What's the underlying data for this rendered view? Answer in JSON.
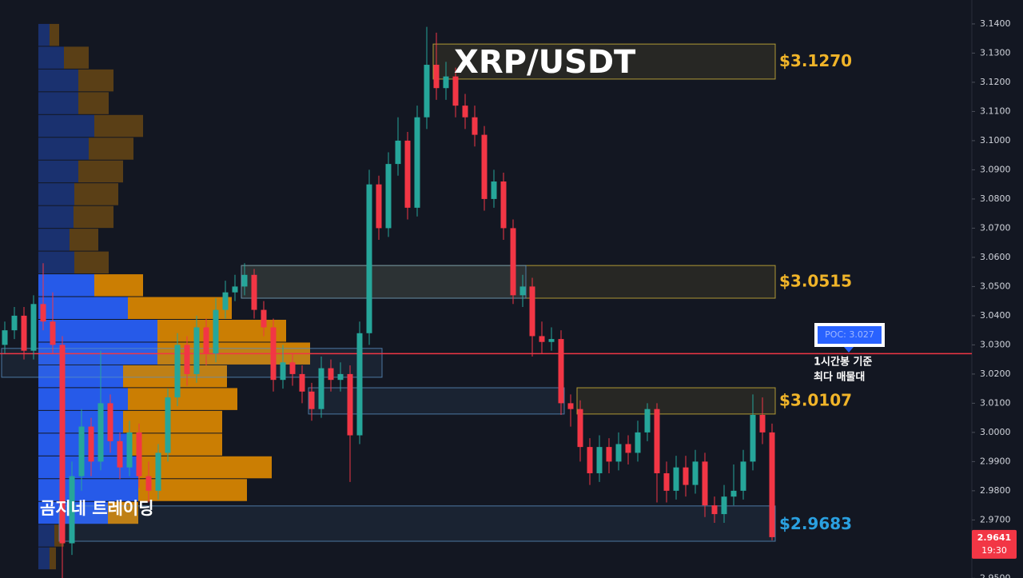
{
  "chart_data": {
    "type": "candlestick",
    "title": "XRP/USDT",
    "watermark": "곰지네 트레이딩",
    "ylim": [
      2.9501,
      3.1482
    ],
    "yticks": [
      {
        "value": 3.14,
        "label": "3.1400"
      },
      {
        "value": 3.13,
        "label": "3.1300"
      },
      {
        "value": 3.12,
        "label": "3.1200"
      },
      {
        "value": 3.11,
        "label": "3.1100"
      },
      {
        "value": 3.1,
        "label": "3.1000"
      },
      {
        "value": 3.09,
        "label": "3.0900"
      },
      {
        "value": 3.08,
        "label": "3.0800"
      },
      {
        "value": 3.07,
        "label": "3.0700"
      },
      {
        "value": 3.06,
        "label": "3.0600"
      },
      {
        "value": 3.05,
        "label": "3.0500"
      },
      {
        "value": 3.04,
        "label": "3.0400"
      },
      {
        "value": 3.03,
        "label": "3.0300"
      },
      {
        "value": 3.02,
        "label": "3.0200"
      },
      {
        "value": 3.01,
        "label": "3.0100"
      },
      {
        "value": 3.0,
        "label": "3.0000"
      },
      {
        "value": 2.99,
        "label": "2.9900"
      },
      {
        "value": 2.98,
        "label": "2.9800"
      },
      {
        "value": 2.97,
        "label": "2.9700"
      },
      {
        "value": 2.95,
        "label": "2.9500"
      }
    ],
    "up_color": "#26a69a",
    "down_color": "#f23645",
    "open": [
      3.03,
      3.035,
      3.04,
      3.028,
      3.044,
      3.038,
      3.03,
      2.962,
      2.985,
      3.002,
      2.99,
      3.01,
      2.997,
      2.988,
      3.0,
      2.985,
      2.98,
      2.993,
      3.012,
      3.03,
      3.02,
      3.036,
      3.027,
      3.042,
      3.048,
      3.05,
      3.054,
      3.042,
      3.036,
      3.018,
      3.024,
      3.02,
      3.014,
      3.008,
      3.022,
      3.018,
      3.02,
      2.999,
      3.034,
      3.085,
      3.07,
      3.092,
      3.1,
      3.077,
      3.108,
      3.126,
      3.118,
      3.122,
      3.112,
      3.108,
      3.102,
      3.08,
      3.086,
      3.07,
      3.047,
      3.05,
      3.033,
      3.031,
      3.032,
      3.01,
      3.008,
      2.995,
      2.986,
      2.995,
      2.99,
      2.996,
      2.993,
      3.0,
      3.008,
      2.986,
      2.98,
      2.988,
      2.982,
      2.99,
      2.975,
      2.972,
      2.978,
      2.98,
      2.99,
      3.006,
      3.0
    ],
    "high": [
      3.038,
      3.043,
      3.043,
      3.047,
      3.058,
      3.048,
      3.033,
      2.99,
      3.008,
      3.005,
      3.028,
      3.013,
      3.0,
      3.004,
      3.003,
      2.99,
      2.996,
      3.015,
      3.034,
      3.033,
      3.04,
      3.039,
      3.046,
      3.052,
      3.054,
      3.058,
      3.056,
      3.045,
      3.039,
      3.03,
      3.027,
      3.023,
      3.017,
      3.026,
      3.025,
      3.024,
      3.023,
      3.038,
      3.09,
      3.088,
      3.096,
      3.108,
      3.103,
      3.112,
      3.139,
      3.137,
      3.127,
      3.125,
      3.116,
      3.112,
      3.105,
      3.09,
      3.089,
      3.073,
      3.054,
      3.053,
      3.038,
      3.036,
      3.035,
      3.013,
      3.011,
      2.998,
      2.999,
      2.998,
      3.0,
      2.999,
      3.004,
      3.01,
      3.01,
      2.99,
      2.992,
      2.992,
      2.994,
      2.993,
      2.978,
      2.982,
      2.989,
      2.994,
      3.013,
      3.012,
      3.003
    ],
    "low": [
      3.027,
      3.032,
      3.025,
      3.025,
      3.035,
      3.027,
      2.95,
      2.958,
      2.98,
      2.985,
      2.987,
      2.993,
      2.984,
      2.985,
      2.981,
      2.976,
      2.977,
      2.99,
      3.009,
      3.016,
      3.017,
      3.023,
      3.024,
      3.039,
      3.045,
      3.047,
      3.039,
      3.033,
      3.014,
      3.015,
      3.016,
      3.01,
      3.004,
      3.005,
      3.014,
      3.014,
      2.983,
      2.996,
      3.03,
      3.066,
      3.067,
      3.088,
      3.073,
      3.074,
      3.104,
      3.114,
      3.114,
      3.108,
      3.104,
      3.098,
      3.076,
      3.077,
      3.066,
      3.044,
      3.043,
      3.026,
      3.027,
      3.028,
      3.006,
      3.002,
      2.99,
      2.982,
      2.983,
      2.986,
      2.987,
      2.989,
      2.99,
      2.997,
      2.976,
      2.976,
      2.977,
      2.978,
      2.979,
      2.971,
      2.969,
      2.969,
      2.975,
      2.977,
      2.987,
      2.996,
      2.963
    ],
    "close": [
      3.035,
      3.04,
      3.028,
      3.044,
      3.038,
      3.03,
      2.962,
      2.985,
      3.002,
      2.99,
      3.01,
      2.997,
      2.988,
      3.0,
      2.985,
      2.98,
      2.993,
      3.012,
      3.03,
      3.02,
      3.036,
      3.027,
      3.042,
      3.048,
      3.05,
      3.054,
      3.042,
      3.036,
      3.018,
      3.024,
      3.02,
      3.014,
      3.008,
      3.022,
      3.018,
      3.02,
      2.999,
      3.034,
      3.085,
      3.07,
      3.092,
      3.1,
      3.077,
      3.108,
      3.126,
      3.118,
      3.122,
      3.112,
      3.108,
      3.102,
      3.08,
      3.086,
      3.07,
      3.047,
      3.05,
      3.033,
      3.031,
      3.032,
      3.01,
      3.008,
      2.995,
      2.986,
      2.995,
      2.99,
      2.996,
      2.993,
      3.0,
      3.008,
      2.986,
      2.98,
      2.988,
      2.982,
      2.99,
      2.975,
      2.972,
      2.978,
      2.98,
      2.99,
      3.006,
      3.0,
      2.9641
    ],
    "countdown": "19:30",
    "poc": {
      "value": 3.027,
      "label": "POC: 3.027",
      "color": "#f23645",
      "note": [
        "1시간봉 기준",
        "최다 매물대"
      ]
    },
    "zones": [
      {
        "top": 3.1331,
        "bottom": 3.1211,
        "from": 45,
        "to": 80,
        "color": "#d4b83a",
        "level": 3.127,
        "label": "$3.1270",
        "label_color": "#f0b429"
      },
      {
        "top": 3.0572,
        "bottom": 3.046,
        "from": 25,
        "to": 80,
        "color": "#d4b83a",
        "level": 3.0515,
        "label": "$3.0515",
        "label_color": "#f0b429"
      },
      {
        "top": 3.0572,
        "bottom": 3.046,
        "from": 25,
        "to": 54,
        "color": "#5a8fc0"
      },
      {
        "top": 3.0288,
        "bottom": 3.0189,
        "from": 0,
        "to": 39,
        "color": "#5a8fc0"
      },
      {
        "top": 3.0153,
        "bottom": 3.0063,
        "from": 32,
        "to": 58,
        "color": "#5a8fc0"
      },
      {
        "top": 3.0153,
        "bottom": 3.0063,
        "from": 60,
        "to": 80,
        "color": "#d4b83a",
        "level": 3.0107,
        "label": "$3.0107",
        "label_color": "#f0b429"
      },
      {
        "top": 2.9748,
        "bottom": 2.9627,
        "from": 6,
        "to": 80,
        "color": "#5a8fc0",
        "level": 2.9683,
        "label": "$2.9683",
        "label_color": "#2aa0e0"
      }
    ],
    "volume_profile": {
      "bins": [
        3.14,
        3.1322,
        3.1244,
        3.1166,
        3.1088,
        3.101,
        3.0932,
        3.0854,
        3.0776,
        3.0698,
        3.062,
        3.0542,
        3.0464,
        3.0386,
        3.0308,
        3.023,
        3.0152,
        3.0074,
        2.9996,
        2.9918,
        2.984,
        2.9762,
        2.9684,
        2.9606,
        2.9528
      ],
      "up": [
        14,
        32,
        50,
        50,
        70,
        63,
        50,
        45,
        44,
        39,
        45,
        70,
        112,
        149,
        149,
        106,
        112,
        106,
        112,
        125,
        125,
        87,
        20,
        14
      ],
      "down": [
        12,
        31,
        44,
        38,
        61,
        56,
        56,
        55,
        50,
        36,
        43,
        61,
        130,
        161,
        191,
        130,
        137,
        124,
        118,
        167,
        136,
        38,
        12,
        8
      ],
      "highlight": [
        false,
        false,
        false,
        false,
        false,
        false,
        false,
        false,
        false,
        false,
        false,
        true,
        true,
        true,
        true,
        true,
        true,
        true,
        true,
        true,
        true,
        true,
        false,
        false
      ],
      "up_color": "#2962ff",
      "down_color": "#e08a00"
    }
  }
}
